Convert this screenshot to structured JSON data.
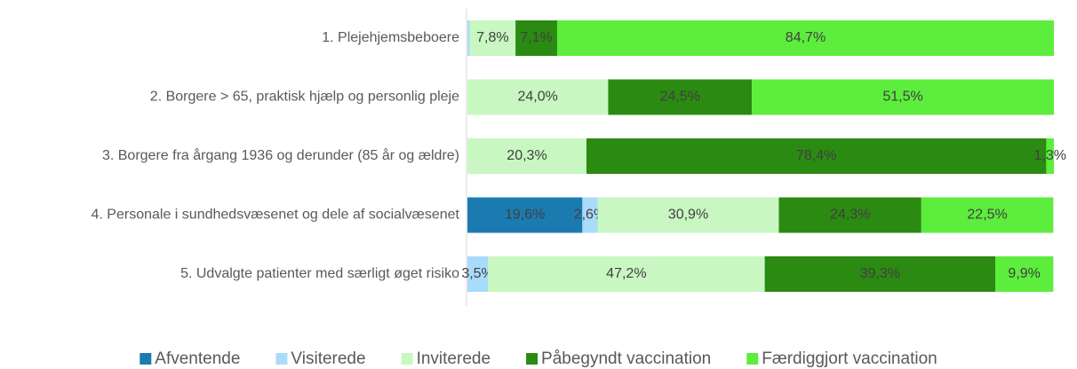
{
  "chart_data": {
    "type": "stacked-bar-horizontal",
    "categories": [
      "1. Plejehjemsbeboere",
      "2. Borgere > 65, praktisk hjælp og personlig pleje",
      "3. Borgere fra årgang 1936 og derunder (85 år og ældre)",
      "4. Personale i sundhedsvæsenet og dele af socialvæsenet",
      "5. Udvalgte patienter med særligt øget risiko"
    ],
    "series": [
      {
        "name": "Afventende",
        "color": "#1b7bb0",
        "values": [
          0,
          0,
          0,
          19.6,
          0
        ],
        "value_labels": [
          null,
          null,
          null,
          "19,6%",
          null
        ]
      },
      {
        "name": "Visiterede",
        "color": "#a9dbfa",
        "values": [
          0.4,
          0,
          0,
          2.6,
          3.5
        ],
        "value_labels": [
          null,
          null,
          null,
          "2,6%",
          "3,5%"
        ]
      },
      {
        "name": "Inviterede",
        "color": "#c9f7c2",
        "values": [
          7.8,
          24.0,
          20.3,
          30.9,
          47.2
        ],
        "value_labels": [
          "7,8%",
          "24,0%",
          "20,3%",
          "30,9%",
          "47,2%"
        ]
      },
      {
        "name": "Påbegyndt vaccination",
        "color": "#2b8a12",
        "values": [
          7.1,
          24.5,
          78.4,
          24.3,
          39.3
        ],
        "value_labels": [
          "7,1%",
          "24,5%",
          "78,4%",
          "24,3%",
          "39,3%"
        ]
      },
      {
        "name": "Færdiggjort vaccination",
        "color": "#5ded3d",
        "values": [
          84.7,
          51.5,
          1.3,
          22.5,
          9.9
        ],
        "value_labels": [
          "84,7%",
          "51,5%",
          "1,3%",
          "22,5%",
          "9,9%"
        ]
      }
    ],
    "xlim": [
      0,
      100
    ],
    "legend": "bottom"
  }
}
